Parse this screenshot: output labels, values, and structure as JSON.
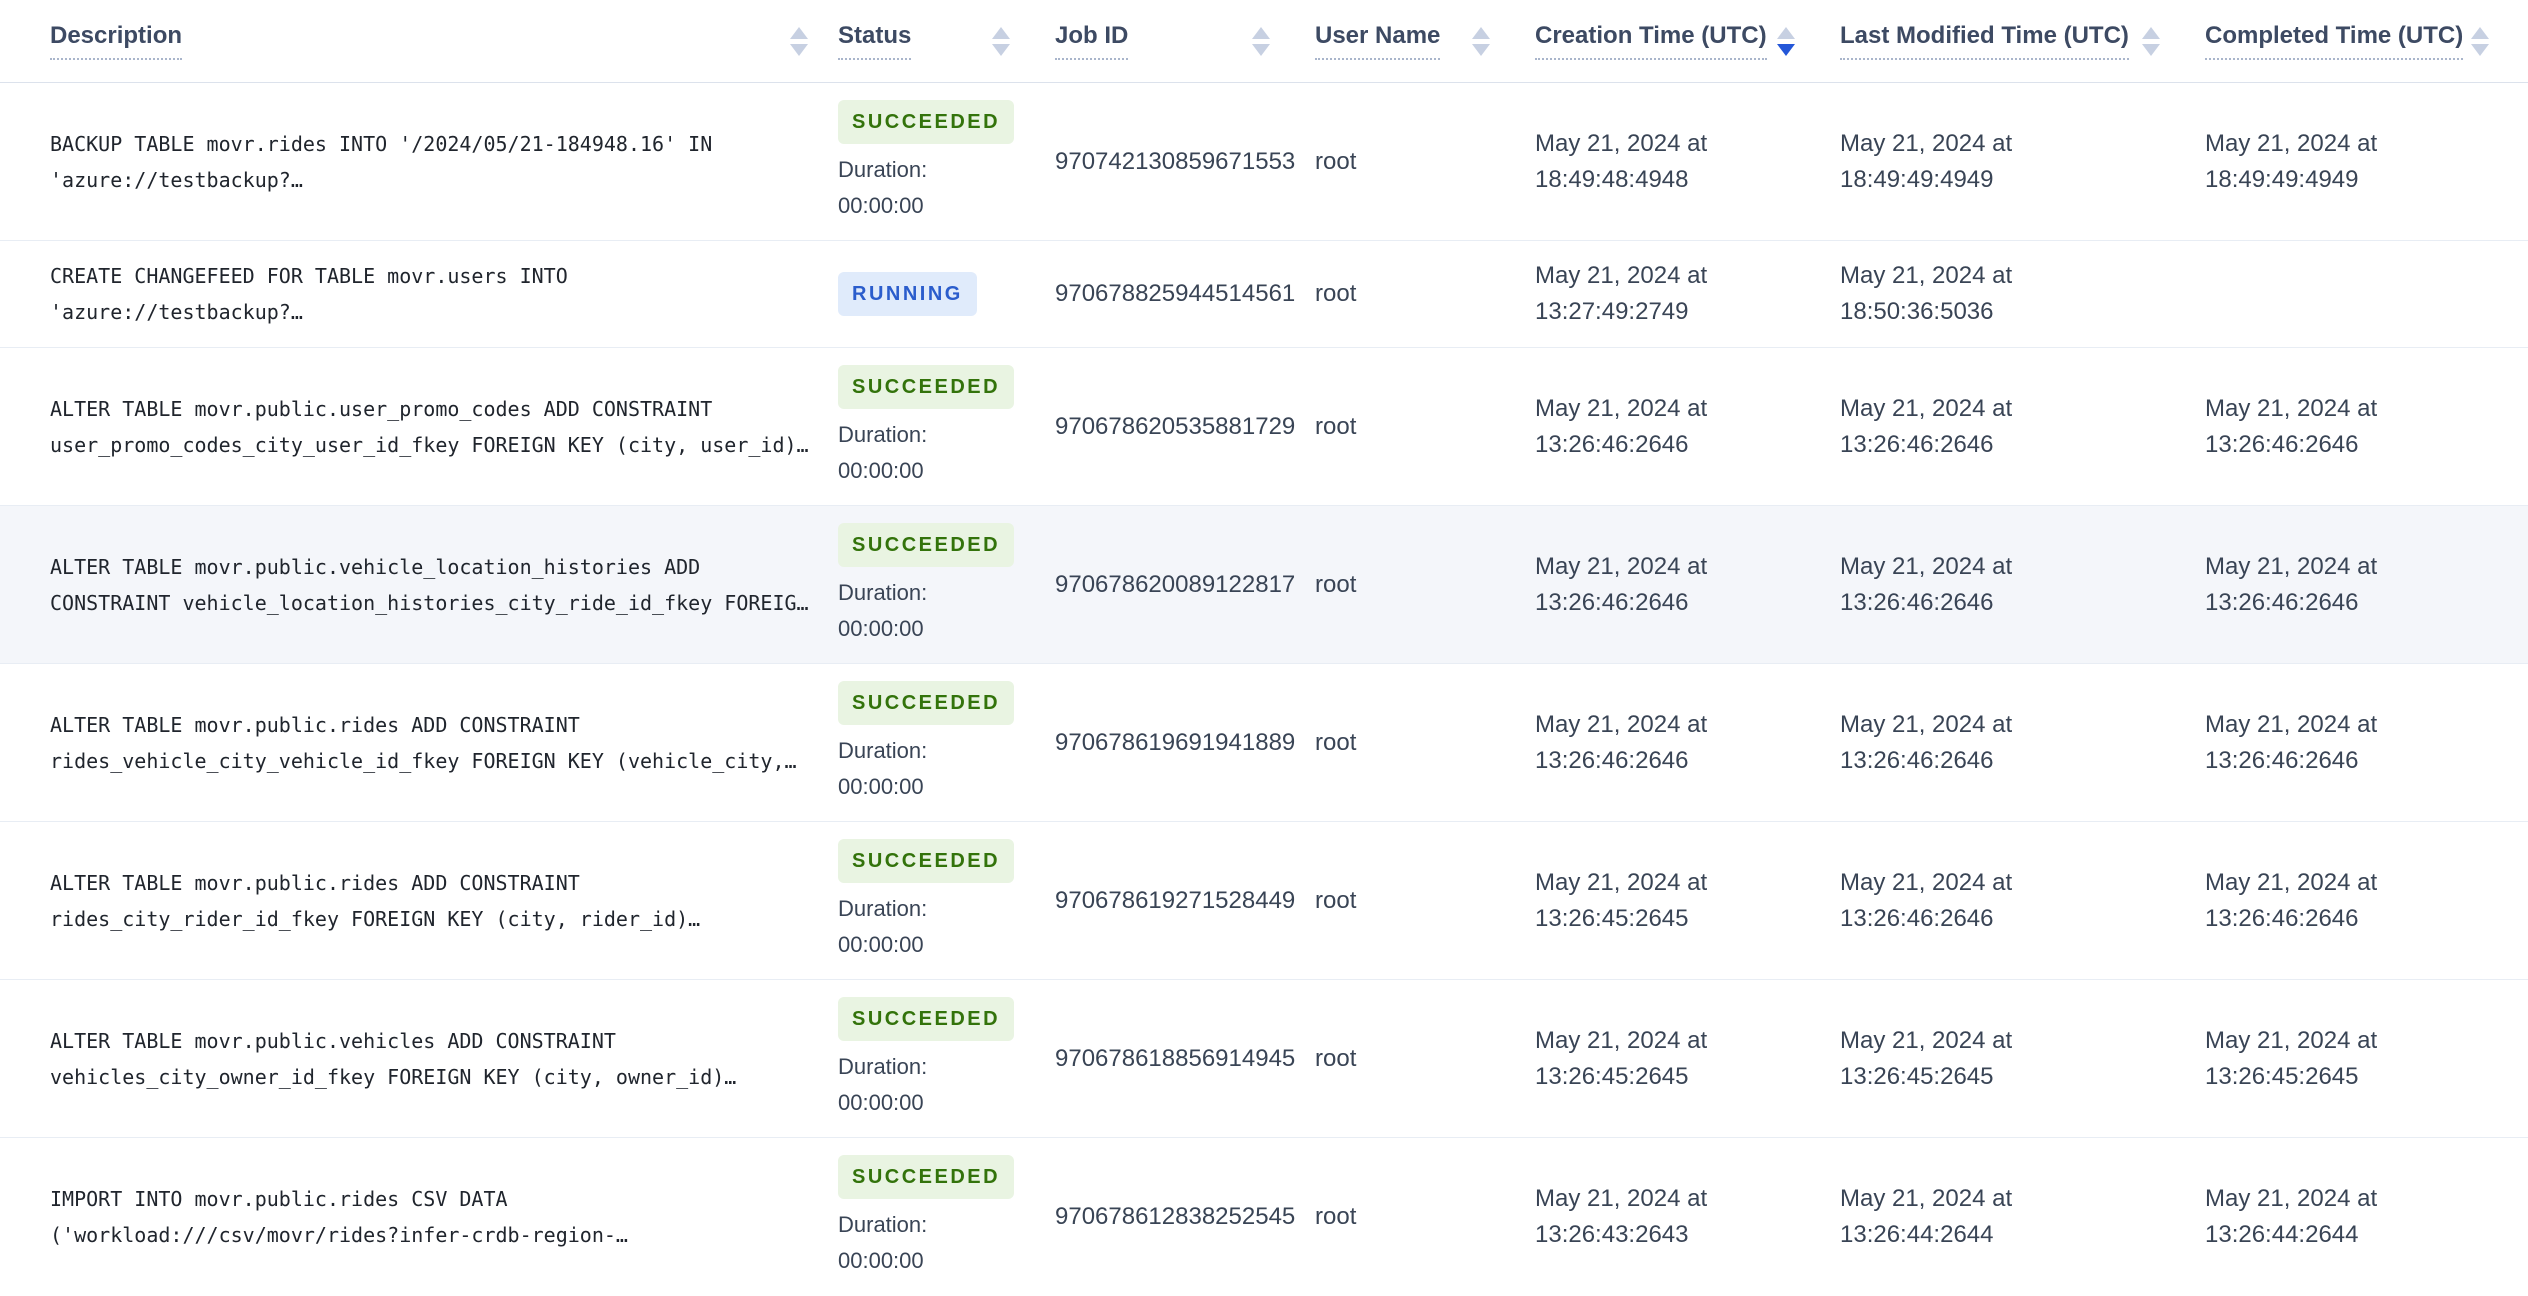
{
  "table": {
    "columns": [
      {
        "label": "Description",
        "sort": "none"
      },
      {
        "label": "Status",
        "sort": "none"
      },
      {
        "label": "Job ID",
        "sort": "none"
      },
      {
        "label": "User Name",
        "sort": "none"
      },
      {
        "label": "Creation Time (UTC)",
        "sort": "desc"
      },
      {
        "label": "Last Modified Time (UTC)",
        "sort": "none"
      },
      {
        "label": "Completed Time (UTC)",
        "sort": "none"
      }
    ],
    "rows": [
      {
        "description": "BACKUP TABLE movr.rides INTO '/2024/05/21-184948.16' IN 'azure://testbackup?…",
        "status": "SUCCEEDED",
        "duration": "Duration: 00:00:00",
        "job_id": "970742130859671553",
        "user_name": "root",
        "created": "May 21, 2024 at 18:49:48:4948",
        "modified": "May 21, 2024 at 18:49:49:4949",
        "completed": "May 21, 2024 at 18:49:49:4949",
        "highlighted": false
      },
      {
        "description": "CREATE CHANGEFEED FOR TABLE movr.users INTO 'azure://testbackup?…",
        "status": "RUNNING",
        "duration": null,
        "job_id": "970678825944514561",
        "user_name": "root",
        "created": "May 21, 2024 at 13:27:49:2749",
        "modified": "May 21, 2024 at 18:50:36:5036",
        "completed": "",
        "highlighted": false
      },
      {
        "description": "ALTER TABLE movr.public.user_promo_codes ADD CONSTRAINT user_promo_codes_city_user_id_fkey FOREIGN KEY (city, user_id)…",
        "status": "SUCCEEDED",
        "duration": "Duration: 00:00:00",
        "job_id": "970678620535881729",
        "user_name": "root",
        "created": "May 21, 2024 at 13:26:46:2646",
        "modified": "May 21, 2024 at 13:26:46:2646",
        "completed": "May 21, 2024 at 13:26:46:2646",
        "highlighted": false
      },
      {
        "description": "ALTER TABLE movr.public.vehicle_location_histories ADD CONSTRAINT vehicle_location_histories_city_ride_id_fkey FOREIG…",
        "status": "SUCCEEDED",
        "duration": "Duration: 00:00:00",
        "job_id": "970678620089122817",
        "user_name": "root",
        "created": "May 21, 2024 at 13:26:46:2646",
        "modified": "May 21, 2024 at 13:26:46:2646",
        "completed": "May 21, 2024 at 13:26:46:2646",
        "highlighted": true
      },
      {
        "description": "ALTER TABLE movr.public.rides ADD CONSTRAINT rides_vehicle_city_vehicle_id_fkey FOREIGN KEY (vehicle_city,…",
        "status": "SUCCEEDED",
        "duration": "Duration: 00:00:00",
        "job_id": "970678619691941889",
        "user_name": "root",
        "created": "May 21, 2024 at 13:26:46:2646",
        "modified": "May 21, 2024 at 13:26:46:2646",
        "completed": "May 21, 2024 at 13:26:46:2646",
        "highlighted": false
      },
      {
        "description": "ALTER TABLE movr.public.rides ADD CONSTRAINT rides_city_rider_id_fkey FOREIGN KEY (city, rider_id)…",
        "status": "SUCCEEDED",
        "duration": "Duration: 00:00:00",
        "job_id": "970678619271528449",
        "user_name": "root",
        "created": "May 21, 2024 at 13:26:45:2645",
        "modified": "May 21, 2024 at 13:26:46:2646",
        "completed": "May 21, 2024 at 13:26:46:2646",
        "highlighted": false
      },
      {
        "description": "ALTER TABLE movr.public.vehicles ADD CONSTRAINT vehicles_city_owner_id_fkey FOREIGN KEY (city, owner_id)…",
        "status": "SUCCEEDED",
        "duration": "Duration: 00:00:00",
        "job_id": "970678618856914945",
        "user_name": "root",
        "created": "May 21, 2024 at 13:26:45:2645",
        "modified": "May 21, 2024 at 13:26:45:2645",
        "completed": "May 21, 2024 at 13:26:45:2645",
        "highlighted": false
      },
      {
        "description": "IMPORT INTO movr.public.rides CSV DATA ('workload:///csv/movr/rides?infer-crdb-region-…",
        "status": "SUCCEEDED",
        "duration": "Duration: 00:00:00",
        "job_id": "970678612838252545",
        "user_name": "root",
        "created": "May 21, 2024 at 13:26:43:2643",
        "modified": "May 21, 2024 at 13:26:44:2644",
        "completed": "May 21, 2024 at 13:26:44:2644",
        "highlighted": false
      }
    ]
  },
  "colors": {
    "succeeded_text": "#33730b",
    "succeeded_bg": "#e9f4e2",
    "running_text": "#2b5dcc",
    "running_bg": "#e0ebfb",
    "sort_active": "#2457d8",
    "sort_inactive": "#c7d0e2",
    "row_highlight_bg": "#f4f6fa"
  }
}
